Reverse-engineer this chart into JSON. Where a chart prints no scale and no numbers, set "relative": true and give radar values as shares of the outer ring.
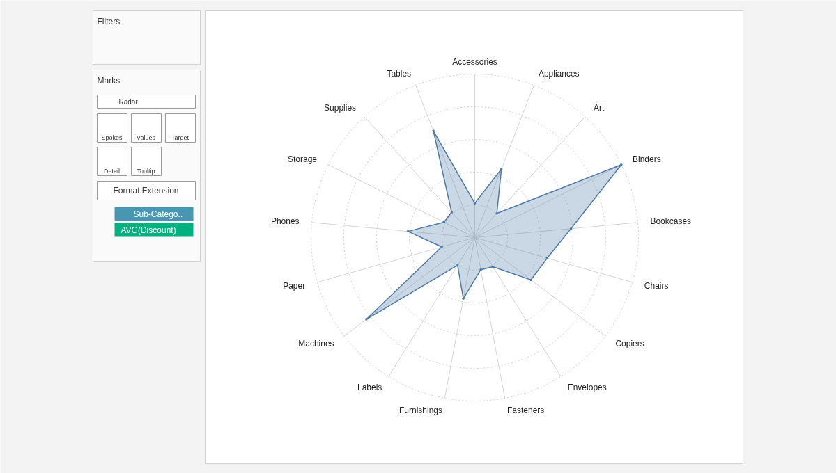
{
  "chart_data": {
    "type": "radar",
    "relative": true,
    "categories": [
      "Accessories",
      "Appliances",
      "Art",
      "Binders",
      "Bookcases",
      "Chairs",
      "Copiers",
      "Envelopes",
      "Fasteners",
      "Furnishings",
      "Labels",
      "Machines",
      "Paper",
      "Phones",
      "Storage",
      "Supplies",
      "Tables"
    ],
    "series": [
      {
        "color": "#4e79a7",
        "values": [
          0.21,
          0.45,
          0.2,
          1.0,
          0.59,
          0.46,
          0.43,
          0.21,
          0.2,
          0.38,
          0.2,
          0.83,
          0.21,
          0.41,
          0.21,
          0.21,
          0.7
        ]
      }
    ],
    "grid": true,
    "marker": "circle",
    "line_style": "solid",
    "annotations": [
      "Filters",
      "Marks",
      "Radar",
      "Spokes",
      "Values",
      "Target",
      "Detail",
      "Tooltip",
      "Format Extension",
      "Sub-Catego..",
      "AVG(Discount)"
    ]
  }
}
